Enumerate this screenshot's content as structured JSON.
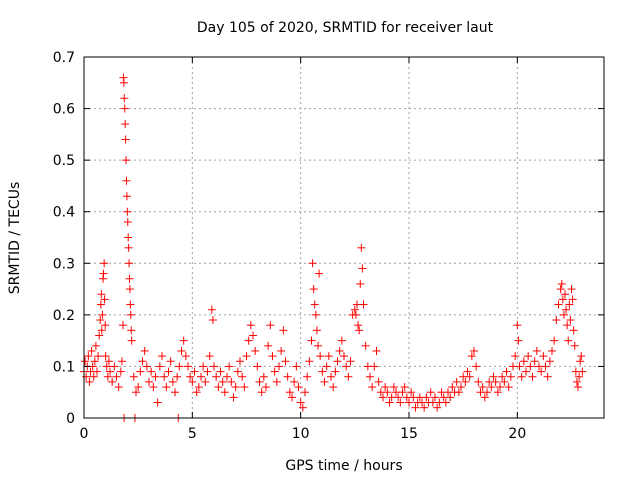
{
  "chart_data": {
    "type": "scatter",
    "title": "Day 105 of 2020, SRMTID for receiver laut",
    "xlabel": "GPS time / hours",
    "ylabel": "SRMTID / TECUs",
    "xlim": [
      0,
      24
    ],
    "ylim": [
      0,
      0.7
    ],
    "xticks": [
      0,
      5,
      10,
      15,
      20
    ],
    "xtick_labels": [
      "0",
      "5",
      "10",
      "15",
      "20"
    ],
    "yticks": [
      0,
      0.1,
      0.2,
      0.3,
      0.4,
      0.5,
      0.6,
      0.7
    ],
    "ytick_labels": [
      "0",
      "0.1",
      "0.2",
      "0.3",
      "0.4",
      "0.5",
      "0.6",
      "0.7"
    ],
    "grid": true,
    "marker": "plus",
    "series": [
      {
        "name": "SRMTID",
        "color": "#ff0000",
        "points": [
          [
            0.0,
            0.09
          ],
          [
            0.05,
            0.11
          ],
          [
            0.1,
            0.08
          ],
          [
            0.15,
            0.1
          ],
          [
            0.2,
            0.12
          ],
          [
            0.25,
            0.07
          ],
          [
            0.3,
            0.09
          ],
          [
            0.35,
            0.13
          ],
          [
            0.4,
            0.1
          ],
          [
            0.45,
            0.08
          ],
          [
            0.5,
            0.11
          ],
          [
            0.55,
            0.14
          ],
          [
            0.6,
            0.09
          ],
          [
            0.65,
            0.12
          ],
          [
            0.7,
            0.16
          ],
          [
            0.75,
            0.19
          ],
          [
            0.78,
            0.22
          ],
          [
            0.8,
            0.24
          ],
          [
            0.82,
            0.17
          ],
          [
            0.85,
            0.2
          ],
          [
            0.88,
            0.27
          ],
          [
            0.9,
            0.28
          ],
          [
            0.93,
            0.3
          ],
          [
            0.95,
            0.23
          ],
          [
            0.98,
            0.18
          ],
          [
            1.0,
            0.12
          ],
          [
            1.05,
            0.1
          ],
          [
            1.1,
            0.08
          ],
          [
            1.15,
            0.11
          ],
          [
            1.2,
            0.09
          ],
          [
            1.3,
            0.07
          ],
          [
            1.4,
            0.1
          ],
          [
            1.5,
            0.08
          ],
          [
            1.6,
            0.06
          ],
          [
            1.7,
            0.09
          ],
          [
            1.75,
            0.11
          ],
          [
            1.8,
            0.18
          ],
          [
            1.82,
            0.66
          ],
          [
            1.84,
            0.65
          ],
          [
            1.86,
            0.62
          ],
          [
            1.88,
            0.6
          ],
          [
            1.9,
            0.57
          ],
          [
            1.92,
            0.54
          ],
          [
            1.94,
            0.5
          ],
          [
            1.96,
            0.46
          ],
          [
            1.98,
            0.43
          ],
          [
            2.0,
            0.4
          ],
          [
            2.02,
            0.38
          ],
          [
            2.04,
            0.35
          ],
          [
            2.06,
            0.33
          ],
          [
            2.08,
            0.3
          ],
          [
            2.1,
            0.27
          ],
          [
            2.12,
            0.25
          ],
          [
            2.14,
            0.22
          ],
          [
            2.16,
            0.2
          ],
          [
            2.18,
            0.17
          ],
          [
            2.2,
            0.15
          ],
          [
            1.85,
            0.0
          ],
          [
            2.35,
            0.0
          ],
          [
            4.35,
            0.0
          ],
          [
            2.3,
            0.08
          ],
          [
            2.4,
            0.05
          ],
          [
            2.5,
            0.06
          ],
          [
            2.6,
            0.09
          ],
          [
            2.7,
            0.11
          ],
          [
            2.8,
            0.13
          ],
          [
            2.9,
            0.1
          ],
          [
            3.0,
            0.07
          ],
          [
            3.1,
            0.09
          ],
          [
            3.2,
            0.06
          ],
          [
            3.3,
            0.08
          ],
          [
            3.4,
            0.03
          ],
          [
            3.5,
            0.1
          ],
          [
            3.6,
            0.12
          ],
          [
            3.7,
            0.08
          ],
          [
            3.8,
            0.06
          ],
          [
            3.9,
            0.09
          ],
          [
            4.0,
            0.11
          ],
          [
            4.1,
            0.07
          ],
          [
            4.2,
            0.05
          ],
          [
            4.3,
            0.08
          ],
          [
            4.4,
            0.1
          ],
          [
            4.5,
            0.13
          ],
          [
            4.6,
            0.15
          ],
          [
            4.7,
            0.12
          ],
          [
            4.8,
            0.1
          ],
          [
            4.9,
            0.08
          ],
          [
            5.0,
            0.07
          ],
          [
            5.1,
            0.09
          ],
          [
            5.2,
            0.05
          ],
          [
            5.3,
            0.06
          ],
          [
            5.4,
            0.08
          ],
          [
            5.5,
            0.1
          ],
          [
            5.6,
            0.07
          ],
          [
            5.7,
            0.09
          ],
          [
            5.8,
            0.12
          ],
          [
            5.9,
            0.21
          ],
          [
            5.95,
            0.19
          ],
          [
            6.0,
            0.1
          ],
          [
            6.1,
            0.08
          ],
          [
            6.2,
            0.06
          ],
          [
            6.3,
            0.09
          ],
          [
            6.4,
            0.07
          ],
          [
            6.5,
            0.05
          ],
          [
            6.6,
            0.08
          ],
          [
            6.7,
            0.1
          ],
          [
            6.8,
            0.07
          ],
          [
            6.9,
            0.04
          ],
          [
            7.0,
            0.06
          ],
          [
            7.1,
            0.09
          ],
          [
            7.2,
            0.11
          ],
          [
            7.3,
            0.08
          ],
          [
            7.4,
            0.06
          ],
          [
            7.5,
            0.12
          ],
          [
            7.6,
            0.15
          ],
          [
            7.7,
            0.18
          ],
          [
            7.8,
            0.16
          ],
          [
            7.9,
            0.13
          ],
          [
            8.0,
            0.1
          ],
          [
            8.1,
            0.07
          ],
          [
            8.2,
            0.05
          ],
          [
            8.3,
            0.08
          ],
          [
            8.4,
            0.06
          ],
          [
            8.5,
            0.14
          ],
          [
            8.6,
            0.18
          ],
          [
            8.7,
            0.12
          ],
          [
            8.8,
            0.09
          ],
          [
            8.9,
            0.07
          ],
          [
            9.0,
            0.1
          ],
          [
            9.1,
            0.13
          ],
          [
            9.2,
            0.17
          ],
          [
            9.3,
            0.11
          ],
          [
            9.4,
            0.08
          ],
          [
            9.5,
            0.05
          ],
          [
            9.6,
            0.04
          ],
          [
            9.7,
            0.07
          ],
          [
            9.8,
            0.1
          ],
          [
            9.9,
            0.06
          ],
          [
            10.0,
            0.03
          ],
          [
            10.1,
            0.02
          ],
          [
            10.2,
            0.05
          ],
          [
            10.3,
            0.08
          ],
          [
            10.4,
            0.11
          ],
          [
            10.5,
            0.15
          ],
          [
            10.55,
            0.3
          ],
          [
            10.6,
            0.25
          ],
          [
            10.65,
            0.22
          ],
          [
            10.7,
            0.2
          ],
          [
            10.75,
            0.17
          ],
          [
            10.8,
            0.14
          ],
          [
            10.85,
            0.28
          ],
          [
            10.9,
            0.12
          ],
          [
            11.0,
            0.09
          ],
          [
            11.1,
            0.07
          ],
          [
            11.2,
            0.1
          ],
          [
            11.3,
            0.12
          ],
          [
            11.4,
            0.08
          ],
          [
            11.5,
            0.06
          ],
          [
            11.6,
            0.09
          ],
          [
            11.7,
            0.11
          ],
          [
            11.8,
            0.13
          ],
          [
            11.9,
            0.15
          ],
          [
            12.0,
            0.12
          ],
          [
            12.1,
            0.1
          ],
          [
            12.2,
            0.08
          ],
          [
            12.3,
            0.11
          ],
          [
            12.4,
            0.2
          ],
          [
            12.5,
            0.21
          ],
          [
            12.55,
            0.2
          ],
          [
            12.6,
            0.22
          ],
          [
            12.65,
            0.18
          ],
          [
            12.7,
            0.17
          ],
          [
            12.75,
            0.26
          ],
          [
            12.8,
            0.33
          ],
          [
            12.85,
            0.29
          ],
          [
            12.9,
            0.22
          ],
          [
            13.0,
            0.14
          ],
          [
            13.1,
            0.1
          ],
          [
            13.2,
            0.08
          ],
          [
            13.3,
            0.06
          ],
          [
            13.4,
            0.1
          ],
          [
            13.5,
            0.13
          ],
          [
            13.6,
            0.07
          ],
          [
            13.7,
            0.05
          ],
          [
            13.8,
            0.04
          ],
          [
            13.9,
            0.06
          ],
          [
            14.0,
            0.05
          ],
          [
            14.1,
            0.03
          ],
          [
            14.2,
            0.04
          ],
          [
            14.3,
            0.06
          ],
          [
            14.4,
            0.05
          ],
          [
            14.5,
            0.04
          ],
          [
            14.6,
            0.03
          ],
          [
            14.7,
            0.05
          ],
          [
            14.8,
            0.06
          ],
          [
            14.9,
            0.04
          ],
          [
            15.0,
            0.03
          ],
          [
            15.1,
            0.05
          ],
          [
            15.2,
            0.04
          ],
          [
            15.3,
            0.02
          ],
          [
            15.4,
            0.03
          ],
          [
            15.5,
            0.04
          ],
          [
            15.6,
            0.03
          ],
          [
            15.7,
            0.02
          ],
          [
            15.8,
            0.04
          ],
          [
            15.9,
            0.03
          ],
          [
            16.0,
            0.05
          ],
          [
            16.1,
            0.03
          ],
          [
            16.2,
            0.04
          ],
          [
            16.3,
            0.02
          ],
          [
            16.4,
            0.03
          ],
          [
            16.5,
            0.05
          ],
          [
            16.6,
            0.04
          ],
          [
            16.7,
            0.03
          ],
          [
            16.8,
            0.05
          ],
          [
            16.9,
            0.04
          ],
          [
            17.0,
            0.06
          ],
          [
            17.1,
            0.05
          ],
          [
            17.2,
            0.07
          ],
          [
            17.3,
            0.05
          ],
          [
            17.4,
            0.06
          ],
          [
            17.5,
            0.08
          ],
          [
            17.6,
            0.07
          ],
          [
            17.7,
            0.09
          ],
          [
            17.8,
            0.08
          ],
          [
            17.9,
            0.12
          ],
          [
            18.0,
            0.13
          ],
          [
            18.1,
            0.1
          ],
          [
            18.2,
            0.07
          ],
          [
            18.3,
            0.05
          ],
          [
            18.4,
            0.06
          ],
          [
            18.5,
            0.04
          ],
          [
            18.6,
            0.05
          ],
          [
            18.7,
            0.07
          ],
          [
            18.8,
            0.06
          ],
          [
            18.9,
            0.08
          ],
          [
            19.0,
            0.07
          ],
          [
            19.1,
            0.05
          ],
          [
            19.2,
            0.06
          ],
          [
            19.3,
            0.08
          ],
          [
            19.4,
            0.07
          ],
          [
            19.5,
            0.09
          ],
          [
            19.6,
            0.06
          ],
          [
            19.7,
            0.08
          ],
          [
            19.8,
            0.1
          ],
          [
            19.9,
            0.12
          ],
          [
            20.0,
            0.18
          ],
          [
            20.05,
            0.15
          ],
          [
            20.1,
            0.1
          ],
          [
            20.2,
            0.08
          ],
          [
            20.3,
            0.11
          ],
          [
            20.4,
            0.09
          ],
          [
            20.5,
            0.12
          ],
          [
            20.6,
            0.1
          ],
          [
            20.7,
            0.08
          ],
          [
            20.8,
            0.11
          ],
          [
            20.9,
            0.13
          ],
          [
            21.0,
            0.1
          ],
          [
            21.1,
            0.09
          ],
          [
            21.2,
            0.12
          ],
          [
            21.3,
            0.1
          ],
          [
            21.4,
            0.08
          ],
          [
            21.5,
            0.11
          ],
          [
            21.6,
            0.13
          ],
          [
            21.7,
            0.15
          ],
          [
            21.8,
            0.19
          ],
          [
            21.9,
            0.22
          ],
          [
            22.0,
            0.25
          ],
          [
            22.05,
            0.26
          ],
          [
            22.1,
            0.23
          ],
          [
            22.15,
            0.2
          ],
          [
            22.2,
            0.24
          ],
          [
            22.25,
            0.21
          ],
          [
            22.3,
            0.18
          ],
          [
            22.35,
            0.15
          ],
          [
            22.4,
            0.22
          ],
          [
            22.45,
            0.19
          ],
          [
            22.5,
            0.25
          ],
          [
            22.55,
            0.23
          ],
          [
            22.6,
            0.17
          ],
          [
            22.65,
            0.14
          ],
          [
            22.7,
            0.09
          ],
          [
            22.75,
            0.07
          ],
          [
            22.8,
            0.06
          ],
          [
            22.85,
            0.08
          ],
          [
            22.9,
            0.11
          ],
          [
            22.95,
            0.12
          ],
          [
            23.0,
            0.09
          ]
        ]
      }
    ]
  }
}
